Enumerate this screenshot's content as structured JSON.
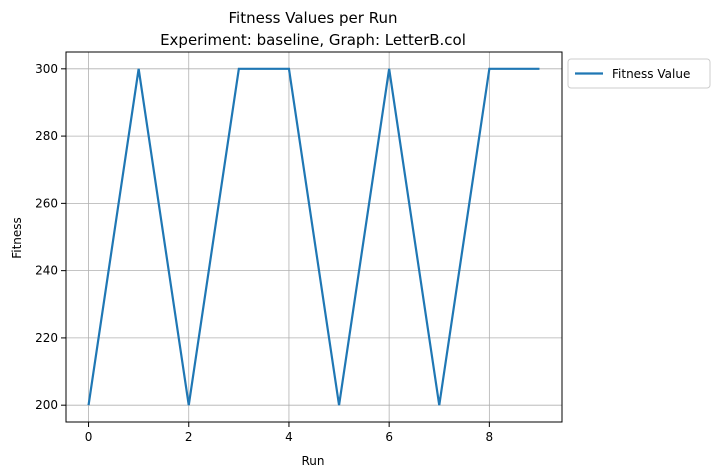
{
  "chart_data": {
    "type": "line",
    "title_line1": "Fitness Values per Run",
    "title_line2": "Experiment: baseline, Graph: LetterB.col",
    "xlabel": "Run",
    "ylabel": "Fitness",
    "xlim": [
      -0.45,
      9.45
    ],
    "ylim": [
      195,
      305
    ],
    "xticks": [
      0,
      2,
      4,
      6,
      8
    ],
    "yticks": [
      200,
      220,
      240,
      260,
      280,
      300
    ],
    "grid": true,
    "legend_position": "outside-top-right",
    "series": [
      {
        "name": "Fitness Value",
        "color": "#1f77b4",
        "x": [
          0,
          1,
          2,
          3,
          4,
          5,
          6,
          7,
          8,
          9
        ],
        "y": [
          200,
          300,
          200,
          300,
          300,
          200,
          300,
          200,
          300,
          300
        ]
      }
    ]
  }
}
